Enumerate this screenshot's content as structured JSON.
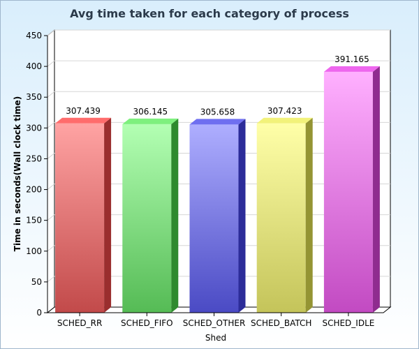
{
  "colors": {
    "background_top": "#d9eefc",
    "background_bottom": "#ffffff",
    "title_text": "#2b3a4a",
    "axis_text": "#000000"
  },
  "chart_data": {
    "type": "bar",
    "title": "Avg time taken for each category of process",
    "xlabel": "Shed",
    "ylabel": "Time in seconds(Wall clock time)",
    "categories": [
      "SCHED_RR",
      "SCHED_FIFO",
      "SCHED_OTHER",
      "SCHED_BATCH",
      "SCHED_IDLE"
    ],
    "values": [
      307.439,
      306.145,
      305.658,
      307.423,
      391.165
    ],
    "value_labels": [
      "307.439",
      "306.145",
      "305.658",
      "307.423",
      "391.165"
    ],
    "ylim": [
      0,
      450
    ],
    "yticks": [
      0,
      50,
      100,
      150,
      200,
      250,
      300,
      350,
      400,
      450
    ],
    "grid": true,
    "legend": "none",
    "bar_colors": [
      {
        "light": "#ffa3a3",
        "dark": "#c24a4a",
        "top": "#ff6c6c",
        "side": "#9a2e2e"
      },
      {
        "light": "#b3ffb3",
        "dark": "#55bb55",
        "top": "#7ef07e",
        "side": "#2e8a2e"
      },
      {
        "light": "#aeaeff",
        "dark": "#4a4ac4",
        "top": "#6f6ff0",
        "side": "#2c2c99"
      },
      {
        "light": "#ffffa8",
        "dark": "#c4c45a",
        "top": "#f2f27a",
        "side": "#949433"
      },
      {
        "light": "#ffb0ff",
        "dark": "#c24ac2",
        "top": "#ee66ee",
        "side": "#8f2c8f"
      }
    ]
  }
}
